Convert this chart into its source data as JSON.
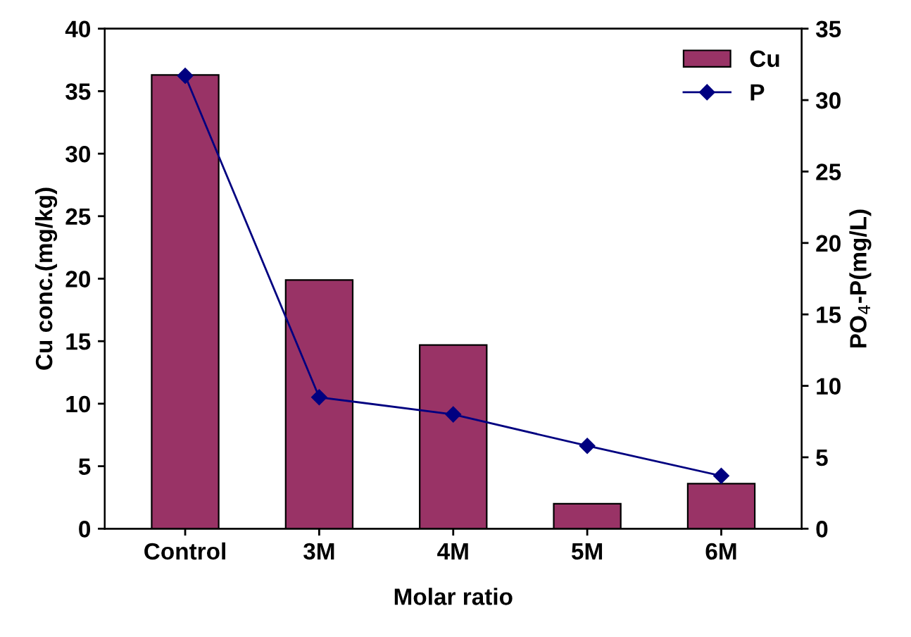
{
  "chart_data": {
    "type": "bar",
    "xlabel": "Molar ratio",
    "ylabel": "Cu conc.(mg/kg)",
    "y2label": "PO$_{4}$-P(mg/L)",
    "categories": [
      "Control",
      "3M",
      "4M",
      "5M",
      "6M"
    ],
    "series": [
      {
        "name": "Cu",
        "color": "#993366",
        "values": [
          36.3,
          19.9,
          14.7,
          2.0,
          3.6
        ]
      },
      {
        "name": "P",
        "type": "line",
        "axis": "y2",
        "color": "#000080",
        "marker": "diamond",
        "values": [
          31.7,
          9.2,
          8.0,
          5.8,
          3.7
        ]
      }
    ],
    "ylim": [
      0,
      40
    ],
    "yticks": [
      0,
      5,
      10,
      15,
      20,
      25,
      30,
      35,
      40
    ],
    "y2lim": [
      0,
      35
    ],
    "y2ticks": [
      0,
      5,
      10,
      15,
      20,
      25,
      30,
      35
    ],
    "grid": false,
    "legend": "top right"
  }
}
